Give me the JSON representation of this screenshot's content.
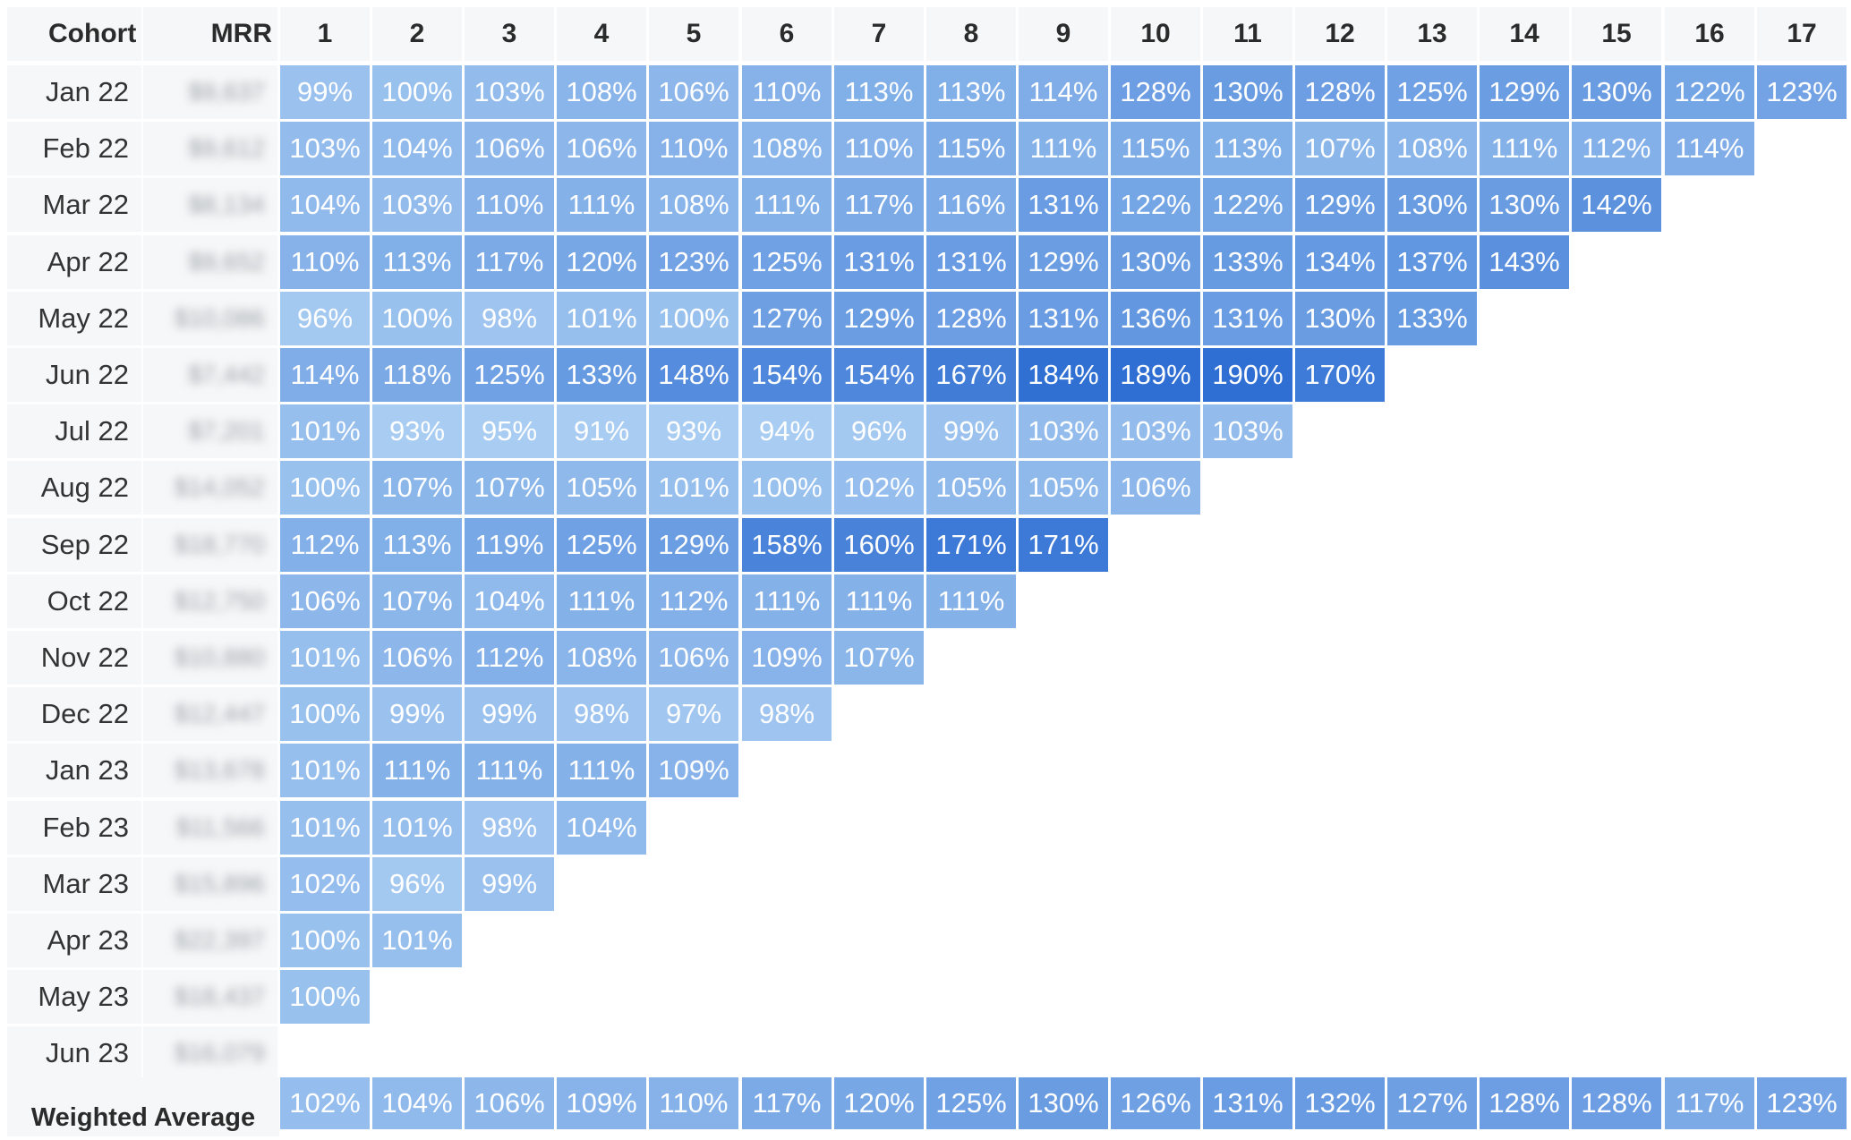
{
  "chart_data": {
    "type": "heatmap",
    "column_headers": {
      "cohort": "Cohort",
      "mrr": "MRR"
    },
    "periods": [
      "1",
      "2",
      "3",
      "4",
      "5",
      "6",
      "7",
      "8",
      "9",
      "10",
      "11",
      "12",
      "13",
      "14",
      "15",
      "16",
      "17"
    ],
    "cohorts": [
      "Jan 22",
      "Feb 22",
      "Mar 22",
      "Apr 22",
      "May 22",
      "Jun 22",
      "Jul 22",
      "Aug 22",
      "Sep 22",
      "Oct 22",
      "Nov 22",
      "Dec 22",
      "Jan 23",
      "Feb 23",
      "Mar 23",
      "Apr 23",
      "May 23",
      "Jun 23"
    ],
    "mrr": [
      "$9,637",
      "$9,612",
      "$8,134",
      "$9,652",
      "$10,086",
      "$7,442",
      "$7,201",
      "$14,052",
      "$18,770",
      "$12,750",
      "$10,880",
      "$12,447",
      "$13,678",
      "$11,566",
      "$15,896",
      "$22,397",
      "$18,437",
      "$16,079"
    ],
    "values": [
      [
        99,
        100,
        103,
        108,
        106,
        110,
        113,
        113,
        114,
        128,
        130,
        128,
        125,
        129,
        130,
        122,
        123
      ],
      [
        103,
        104,
        106,
        106,
        110,
        108,
        110,
        115,
        111,
        115,
        113,
        107,
        108,
        111,
        112,
        114
      ],
      [
        104,
        103,
        110,
        111,
        108,
        111,
        117,
        116,
        131,
        122,
        122,
        129,
        130,
        130,
        142
      ],
      [
        110,
        113,
        117,
        120,
        123,
        125,
        131,
        131,
        129,
        130,
        133,
        134,
        137,
        143
      ],
      [
        96,
        100,
        98,
        101,
        100,
        127,
        129,
        128,
        131,
        136,
        131,
        130,
        133
      ],
      [
        114,
        118,
        125,
        133,
        148,
        154,
        154,
        167,
        184,
        189,
        190,
        170
      ],
      [
        101,
        93,
        95,
        91,
        93,
        94,
        96,
        99,
        103,
        103,
        103
      ],
      [
        100,
        107,
        107,
        105,
        101,
        100,
        102,
        105,
        105,
        106
      ],
      [
        112,
        113,
        119,
        125,
        129,
        158,
        160,
        171,
        171
      ],
      [
        106,
        107,
        104,
        111,
        112,
        111,
        111,
        111
      ],
      [
        101,
        106,
        112,
        108,
        106,
        109,
        107
      ],
      [
        100,
        99,
        99,
        98,
        97,
        98
      ],
      [
        101,
        111,
        111,
        111,
        109
      ],
      [
        101,
        101,
        98,
        104
      ],
      [
        102,
        96,
        99
      ],
      [
        100,
        101
      ],
      [
        100
      ],
      []
    ],
    "weighted_average": {
      "label": "Weighted Average",
      "values": [
        102,
        104,
        106,
        109,
        110,
        117,
        120,
        125,
        130,
        126,
        131,
        132,
        127,
        128,
        128,
        117,
        123
      ]
    },
    "unit": "%",
    "colors": {
      "low": "#a9cdf2",
      "high": "#2f6fd3"
    }
  }
}
